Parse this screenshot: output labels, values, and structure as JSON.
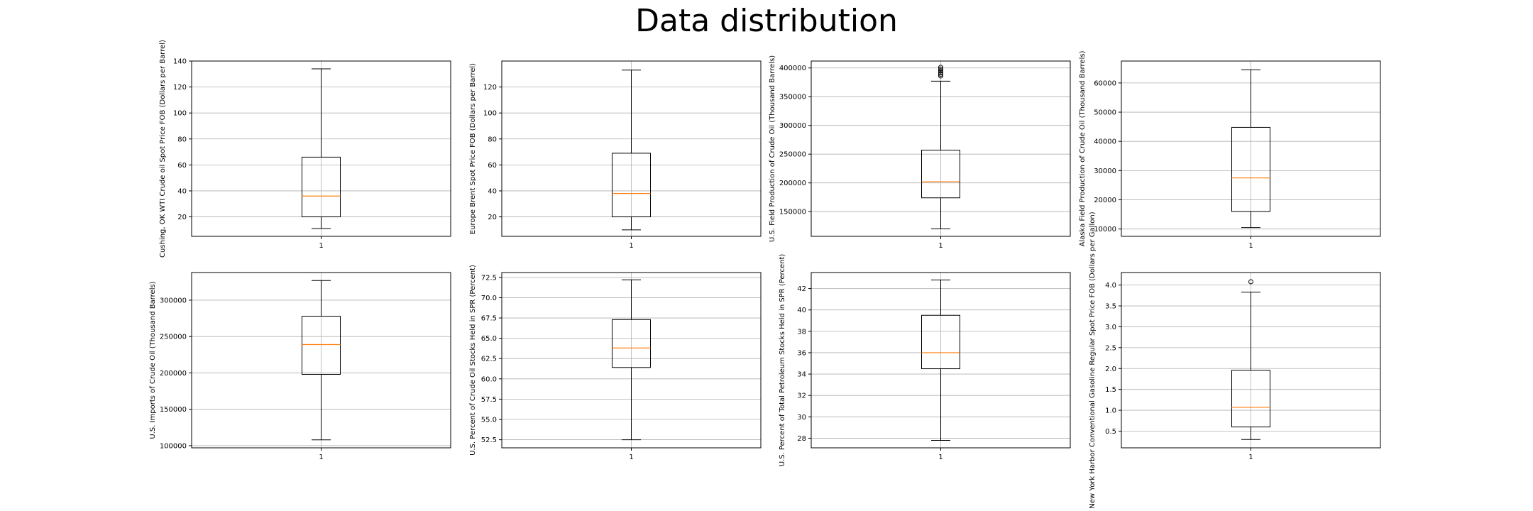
{
  "figure": {
    "title": "Data distribution"
  },
  "chart_data": [
    {
      "type": "box",
      "ylabel": "Cushing, OK WTI Crude oil Spot Price FOB (Dollars per Barrel)",
      "xticks": [
        "1"
      ],
      "ylim": [
        5,
        140
      ],
      "yticks": [
        20,
        40,
        60,
        80,
        100,
        120,
        140
      ],
      "tick_decimals": 0,
      "grid": true,
      "box": {
        "whislo": 11,
        "q1": 20,
        "med": 36,
        "q3": 66,
        "whishi": 134
      },
      "fliers": []
    },
    {
      "type": "box",
      "ylabel": "Europe Brent Spot Price FOB (Dollars per Barrel)",
      "xticks": [
        "1"
      ],
      "ylim": [
        5,
        140
      ],
      "yticks": [
        20,
        40,
        60,
        80,
        100,
        120
      ],
      "tick_decimals": 0,
      "grid": true,
      "box": {
        "whislo": 10,
        "q1": 20,
        "med": 38,
        "q3": 69,
        "whishi": 133
      },
      "fliers": []
    },
    {
      "type": "box",
      "ylabel": "U.S. Field Production of Crude Oil (Thousand Barrels)",
      "xticks": [
        "1"
      ],
      "ylim": [
        107000,
        412000
      ],
      "yticks": [
        150000,
        200000,
        250000,
        300000,
        350000,
        400000
      ],
      "tick_decimals": 0,
      "grid": true,
      "box": {
        "whislo": 120000,
        "q1": 174000,
        "med": 202000,
        "q3": 257000,
        "whishi": 377000
      },
      "fliers": [
        386000,
        389000,
        392000,
        395000,
        398000,
        401000
      ]
    },
    {
      "type": "box",
      "ylabel": "Alaska Field Production of Crude Oil (Thousand Barrels)",
      "xticks": [
        "1"
      ],
      "ylim": [
        7500,
        67500
      ],
      "yticks": [
        10000,
        20000,
        30000,
        40000,
        50000,
        60000
      ],
      "tick_decimals": 0,
      "grid": true,
      "box": {
        "whislo": 10500,
        "q1": 16000,
        "med": 27500,
        "q3": 44800,
        "whishi": 64500
      },
      "fliers": []
    },
    {
      "type": "box",
      "ylabel": "U.S. Imports of Crude Oil (Thousand Barrels)",
      "xticks": [
        "1"
      ],
      "ylim": [
        97000,
        338000
      ],
      "yticks": [
        100000,
        150000,
        200000,
        250000,
        300000
      ],
      "tick_decimals": 0,
      "grid": true,
      "box": {
        "whislo": 108000,
        "q1": 198000,
        "med": 239000,
        "q3": 278000,
        "whishi": 327000
      },
      "fliers": []
    },
    {
      "type": "box",
      "ylabel": "U.S. Percent of Crude Oil Stocks Held in SPR (Percent)",
      "xticks": [
        "1"
      ],
      "ylim": [
        51.5,
        73.1
      ],
      "yticks": [
        52.5,
        55.0,
        57.5,
        60.0,
        62.5,
        65.0,
        67.5,
        70.0,
        72.5
      ],
      "tick_decimals": 1,
      "grid": true,
      "box": {
        "whislo": 52.5,
        "q1": 61.4,
        "med": 63.8,
        "q3": 67.3,
        "whishi": 72.2
      },
      "fliers": []
    },
    {
      "type": "box",
      "ylabel": "U.S. Percent of Total Petroleum Stocks Held in SPR (Percent)",
      "xticks": [
        "1"
      ],
      "ylim": [
        27.1,
        43.5
      ],
      "yticks": [
        28,
        30,
        32,
        34,
        36,
        38,
        40,
        42
      ],
      "tick_decimals": 0,
      "grid": true,
      "box": {
        "whislo": 27.8,
        "q1": 34.5,
        "med": 36.0,
        "q3": 39.5,
        "whishi": 42.8
      },
      "fliers": []
    },
    {
      "type": "box",
      "ylabel": "New York Harbor Conventional Gasoline Regular Spot Price FOB (Dollars per Gallon)",
      "xticks": [
        "1"
      ],
      "ylim": [
        0.1,
        4.3
      ],
      "yticks": [
        0.5,
        1.0,
        1.5,
        2.0,
        2.5,
        3.0,
        3.5,
        4.0
      ],
      "tick_decimals": 1,
      "grid": true,
      "box": {
        "whislo": 0.3,
        "q1": 0.6,
        "med": 1.07,
        "q3": 1.96,
        "whishi": 3.83
      },
      "fliers": [
        4.08
      ]
    }
  ],
  "colors": {
    "median": "#ff7f0e",
    "grid": "#b0b0b0",
    "axes": "#000000"
  }
}
